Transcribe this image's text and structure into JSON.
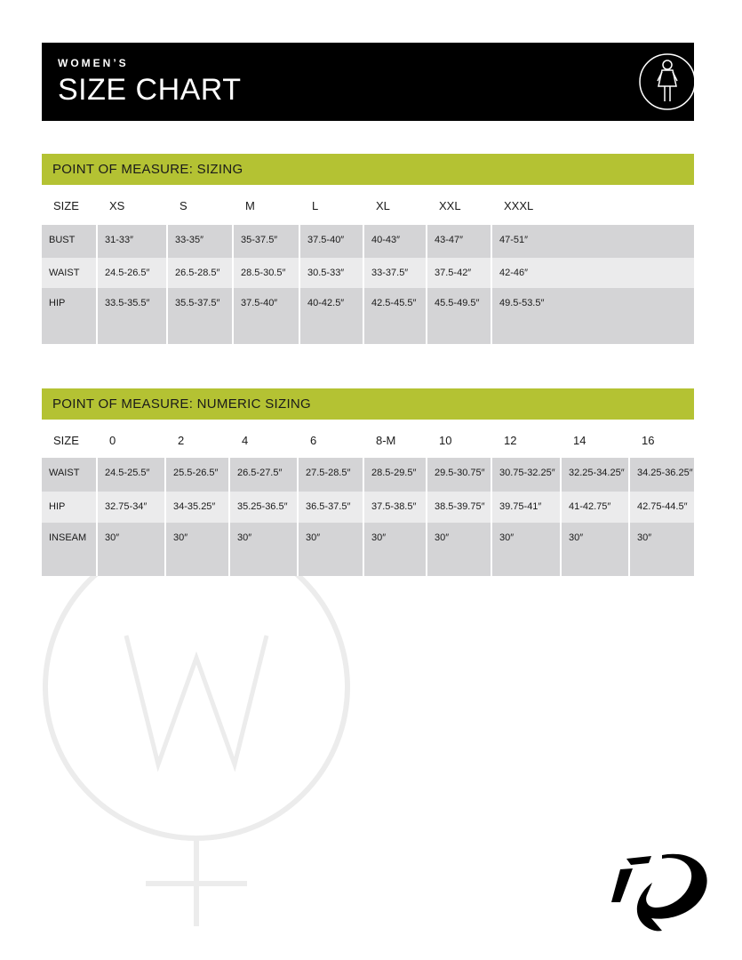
{
  "header": {
    "subtitle": "WOMEN’S",
    "title": "SIZE CHART"
  },
  "tables": [
    {
      "title": "POINT OF MEASURE: SIZING",
      "header": [
        "SIZE",
        "XS",
        "S",
        "M",
        "L",
        "XL",
        "XXL",
        "XXXL"
      ],
      "rows": [
        [
          "BUST",
          "31-33″",
          "33-35″",
          "35-37.5″",
          "37.5-40″",
          "40-43″",
          "43-47″",
          "47-51″"
        ],
        [
          "WAIST",
          "24.5-26.5″",
          "26.5-28.5″",
          "28.5-30.5″",
          "30.5-33″",
          "33-37.5″",
          "37.5-42″",
          "42-46″"
        ],
        [
          "HIP",
          "33.5-35.5″",
          "35.5-37.5″",
          "37.5-40″",
          "40-42.5″",
          "42.5-45.5″",
          "45.5-49.5″",
          "49.5-53.5″"
        ]
      ]
    },
    {
      "title": "POINT OF MEASURE: NUMERIC SIZING",
      "header": [
        "SIZE",
        "0",
        "2",
        "4",
        "6",
        "8-M",
        "10",
        "12",
        "14",
        "16"
      ],
      "rows": [
        [
          "WAIST",
          "24.5-25.5″",
          "25.5-26.5″",
          "26.5-27.5″",
          "27.5-28.5″",
          "28.5-29.5″",
          "29.5-30.75″",
          "30.75-32.25″",
          "32.25-34.25″",
          "34.25-36.25″"
        ],
        [
          "HIP",
          "32.75-34″",
          "34-35.25″",
          "35.25-36.5″",
          "36.5-37.5″",
          "37.5-38.5″",
          "38.5-39.75″",
          "39.75-41″",
          "41-42.75″",
          "42.75-44.5″"
        ],
        [
          "INSEAM",
          "30″",
          "30″",
          "30″",
          "30″",
          "30″",
          "30″",
          "30″",
          "30″",
          "30″"
        ]
      ]
    }
  ]
}
